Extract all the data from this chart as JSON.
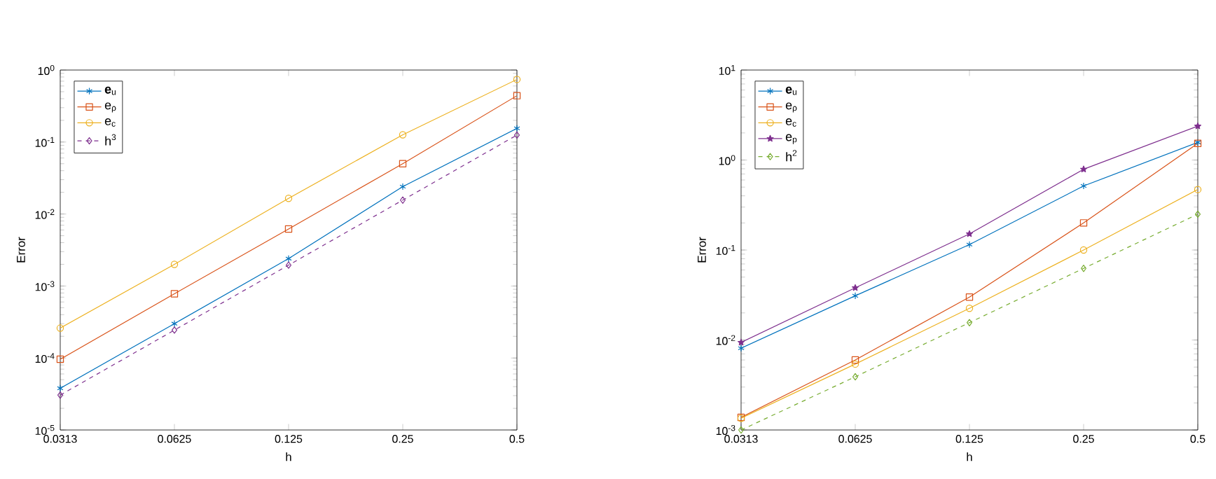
{
  "chart_data": [
    {
      "type": "line",
      "xlabel": "h",
      "ylabel": "Error",
      "log": "xy",
      "legend": "top left",
      "grid": false,
      "x": [
        0.03125,
        0.0625,
        0.125,
        0.25,
        0.5
      ],
      "xlim": [
        0.03125,
        0.5
      ],
      "xticks": [
        {
          "value": 0.03125,
          "label": "0.0313"
        },
        0.0625,
        0.125,
        0.25,
        0.5
      ],
      "ylim": [
        1e-05,
        1
      ],
      "yticks": [
        {
          "value": 1e-05,
          "label": "10$^{-5}$"
        },
        {
          "value": 0.0001,
          "label": "10$^{-4}$"
        },
        {
          "value": 0.001,
          "label": "10$^{-3}$"
        },
        {
          "value": 0.01,
          "label": "10$^{-2}$"
        },
        {
          "value": 0.1,
          "label": "10$^{-1}$"
        },
        {
          "value": 1,
          "label": "10$^{0}$"
        }
      ],
      "series": [
        {
          "name": "**e**$_{u}$",
          "color": "#0072bd",
          "marker": "cross",
          "line_style": "solid",
          "values": [
            3.8e-05,
            0.0003,
            0.0024,
            0.024,
            0.155
          ]
        },
        {
          "name": "e$_{ρ}$",
          "color": "#d95319",
          "marker": "square",
          "line_style": "solid",
          "values": [
            9.6e-05,
            0.00078,
            0.0062,
            0.05,
            0.44
          ]
        },
        {
          "name": "e$_{c}$",
          "color": "#edb120",
          "marker": "circle",
          "line_style": "solid",
          "values": [
            0.00026,
            0.002,
            0.0165,
            0.126,
            0.74
          ]
        },
        {
          "name": "h$^{3}$",
          "color": "#7e2f8e",
          "marker": "diamond",
          "line_style": "dashed",
          "values": [
            3.05e-05,
            0.000244,
            0.00195,
            0.0156,
            0.125
          ]
        }
      ]
    },
    {
      "type": "line",
      "xlabel": "h",
      "ylabel": "Error",
      "log": "xy",
      "legend": "top left",
      "grid": false,
      "x": [
        0.03125,
        0.0625,
        0.125,
        0.25,
        0.5
      ],
      "xlim": [
        0.03125,
        0.5
      ],
      "xticks": [
        {
          "value": 0.03125,
          "label": "0.0313"
        },
        0.0625,
        0.125,
        0.25,
        0.5
      ],
      "ylim": [
        0.001,
        10
      ],
      "yticks": [
        {
          "value": 0.001,
          "label": "10$^{-3}$"
        },
        {
          "value": 0.01,
          "label": "10$^{-2}$"
        },
        {
          "value": 0.1,
          "label": "10$^{-1}$"
        },
        {
          "value": 1,
          "label": "10$^{0}$"
        },
        {
          "value": 10,
          "label": "10$^{1}$"
        }
      ],
      "series": [
        {
          "name": "**e**$_{u}$",
          "color": "#0072bd",
          "marker": "cross",
          "line_style": "solid",
          "values": [
            0.0081,
            0.031,
            0.115,
            0.515,
            1.57
          ]
        },
        {
          "name": "e$_{ρ}$",
          "color": "#d95319",
          "marker": "square",
          "line_style": "solid",
          "values": [
            0.00138,
            0.006,
            0.03,
            0.2,
            1.53
          ]
        },
        {
          "name": "e$_{c}$",
          "color": "#edb120",
          "marker": "circle",
          "line_style": "solid",
          "values": [
            0.00135,
            0.0054,
            0.0225,
            0.1,
            0.47
          ]
        },
        {
          "name": "e$_{p}$",
          "color": "#7e2f8e",
          "marker": "star",
          "line_style": "solid",
          "values": [
            0.0094,
            0.038,
            0.151,
            0.79,
            2.38
          ]
        },
        {
          "name": "h$^{2}$",
          "color": "#77ac30",
          "marker": "diamond",
          "line_style": "dashed",
          "values": [
            0.001,
            0.0039,
            0.0156,
            0.0625,
            0.25
          ]
        }
      ]
    }
  ]
}
